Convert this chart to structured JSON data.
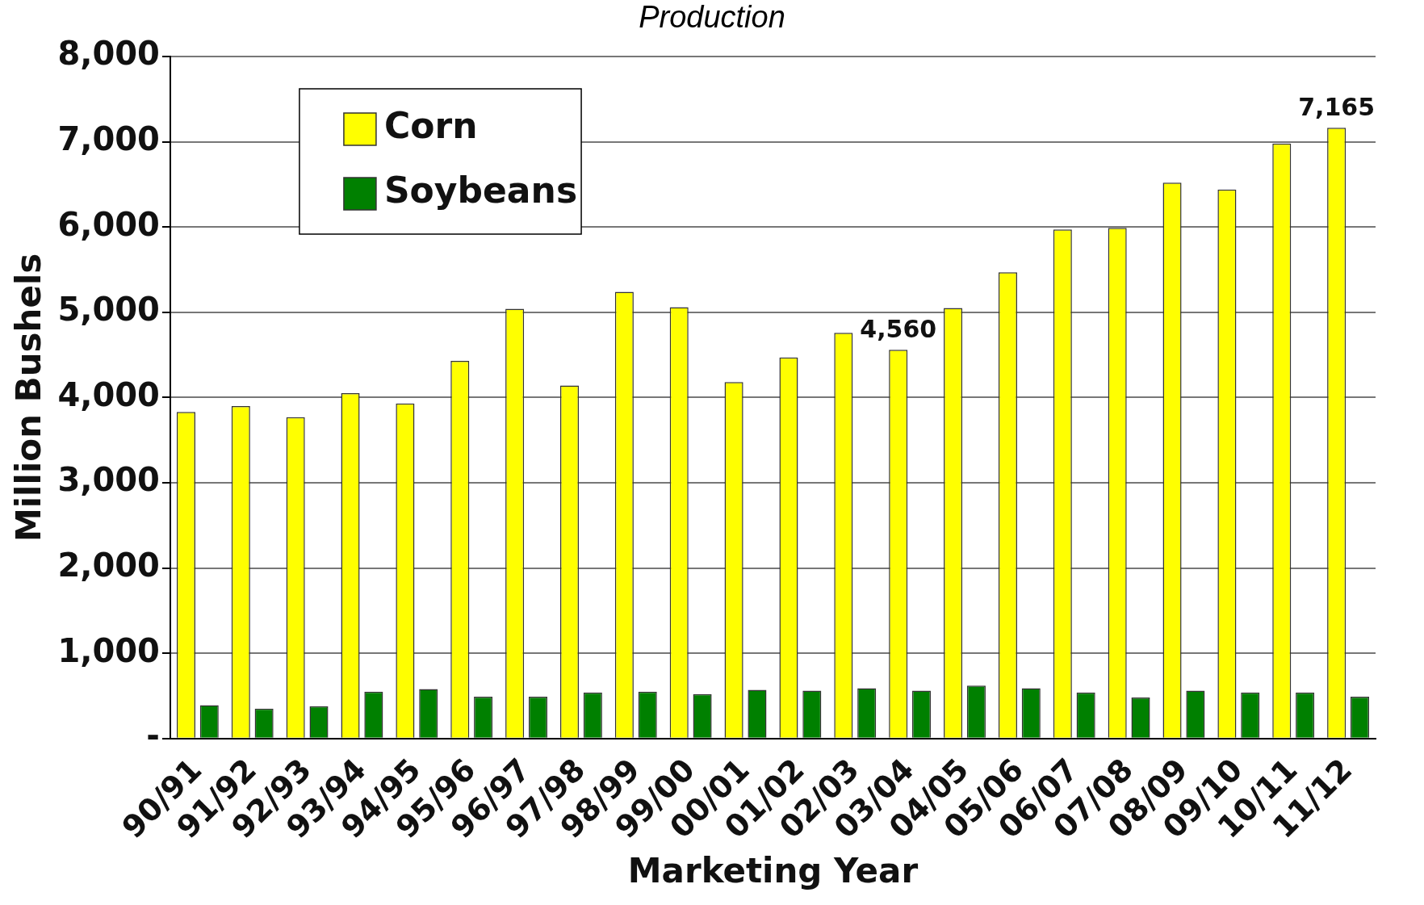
{
  "chart_data": {
    "type": "bar",
    "title": "Production",
    "xlabel": "Marketing Year",
    "ylabel": "Million Bushels",
    "categories": [
      "90/91",
      "91/92",
      "92/93",
      "93/94",
      "94/95",
      "95/96",
      "96/97",
      "97/98",
      "98/99",
      "99/00",
      "00/01",
      "01/02",
      "02/03",
      "03/04",
      "04/05",
      "05/06",
      "06/07",
      "07/08",
      "08/09",
      "09/10",
      "10/11",
      "11/12"
    ],
    "series": [
      {
        "name": "Corn",
        "color": "#ffff00",
        "values": [
          3830,
          3900,
          3770,
          4050,
          3930,
          4430,
          5040,
          4140,
          5240,
          5060,
          4180,
          4470,
          4760,
          4560,
          5050,
          5470,
          5970,
          5990,
          6520,
          6440,
          6980,
          7165
        ],
        "value_labels": [
          null,
          null,
          null,
          null,
          null,
          null,
          null,
          null,
          null,
          null,
          null,
          null,
          null,
          "4,560",
          null,
          null,
          null,
          null,
          null,
          null,
          null,
          "7,165"
        ]
      },
      {
        "name": "Soybeans",
        "color": "#008000",
        "values": [
          390,
          350,
          380,
          550,
          580,
          490,
          490,
          540,
          550,
          520,
          570,
          560,
          590,
          560,
          620,
          590,
          540,
          480,
          560,
          540,
          540,
          490
        ]
      }
    ],
    "ylim": [
      0,
      8000
    ],
    "yticks": [
      {
        "value": 0,
        "label": "-"
      },
      {
        "value": 1000,
        "label": "1,000"
      },
      {
        "value": 2000,
        "label": "2,000"
      },
      {
        "value": 3000,
        "label": "3,000"
      },
      {
        "value": 4000,
        "label": "4,000"
      },
      {
        "value": 5000,
        "label": "5,000"
      },
      {
        "value": 6000,
        "label": "6,000"
      },
      {
        "value": 7000,
        "label": "7,000"
      },
      {
        "value": 8000,
        "label": "8,000"
      }
    ],
    "grid": "y",
    "legend": "top left"
  }
}
